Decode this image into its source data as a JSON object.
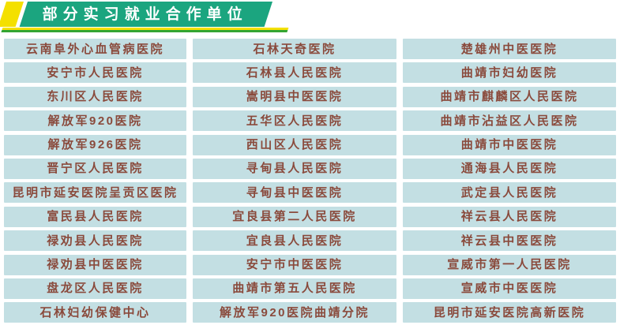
{
  "banner": {
    "title": "部分实习就业合作单位"
  },
  "table": {
    "columns": [
      {
        "cells": [
          "云南阜外心血管病医院",
          "安宁市人民医院",
          "东川区人民医院",
          "解放军920医院",
          "解放军926医院",
          "晋宁区人民医院",
          "昆明市延安医院呈贡区医院",
          "富民县人民医院",
          "禄劝县人民医院",
          "禄劝县中医医院",
          "盘龙区人民医院",
          "石林妇幼保健中心"
        ]
      },
      {
        "cells": [
          "石林天奇医院",
          "石林县人民医院",
          "嵩明县中医医院",
          "五华区人民医院",
          "西山区人民医院",
          "寻甸县人民医院",
          "寻甸县中医医院",
          "宜良县第二人民医院",
          "宜良县人民医院",
          "安宁市中医医院",
          "曲靖市第五人民医院",
          "解放军920医院曲靖分院"
        ]
      },
      {
        "cells": [
          "楚雄州中医医院",
          "曲靖市妇幼医院",
          "曲靖市麒麟区人民医院",
          "曲靖市沾益区人民医院",
          "曲靖市中医医院",
          "通海县人民医院",
          "武定县人民医院",
          "祥云县人民医院",
          "祥云县中医医院",
          "宣威市第一人民医院",
          "宣威市中医医院",
          "昆明市延安医院高新医院"
        ]
      }
    ]
  },
  "colors": {
    "banner_green": "#1ba57f",
    "accent_yellow": "#f4e000",
    "underline_green": "#33a532",
    "cell_background": "#c3dfe3",
    "cell_text": "#8a4a3c",
    "banner_text": "#ffffff",
    "page_background": "#ffffff"
  }
}
